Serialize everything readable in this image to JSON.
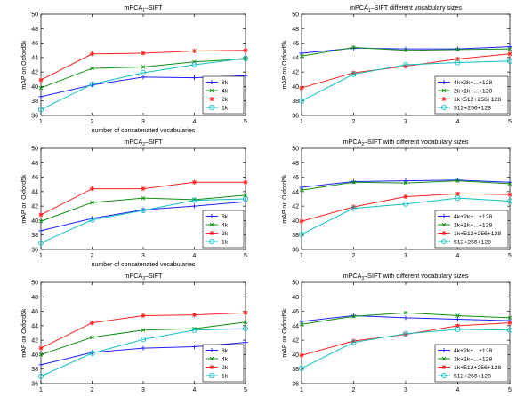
{
  "colors": {
    "blue": "#2020ff",
    "green": "#109010",
    "red": "#ff2020",
    "cyan": "#10c0c0"
  },
  "markers": [
    "plus",
    "x-cross",
    "star",
    "circle"
  ],
  "chart_data": [
    {
      "type": "line",
      "title": "mPCA",
      "title_subscript": "1",
      "title_suffix": "–SIFT",
      "xlabel": "number of concatenated vocabularies",
      "ylabel": "mAP on Oxford5k",
      "x": [
        1,
        2,
        3,
        4,
        5
      ],
      "xlim": [
        1,
        5
      ],
      "ylim": [
        36,
        50
      ],
      "xticks": [
        "1",
        "2",
        "3",
        "4",
        "5"
      ],
      "yticks": [
        "36",
        "38",
        "40",
        "42",
        "44",
        "46",
        "48",
        "50"
      ],
      "legend": "bottom-right",
      "series": [
        {
          "name": "8k",
          "color": "blue",
          "marker": "plus",
          "values": [
            38.6,
            40.2,
            41.3,
            41.2,
            41.5
          ]
        },
        {
          "name": "4k",
          "color": "green",
          "marker": "x-cross",
          "values": [
            39.8,
            42.5,
            42.7,
            43.4,
            43.8
          ]
        },
        {
          "name": "2k",
          "color": "red",
          "marker": "star",
          "values": [
            40.9,
            44.5,
            44.6,
            44.9,
            45.0
          ]
        },
        {
          "name": "1k",
          "color": "cyan",
          "marker": "circle",
          "values": [
            36.8,
            40.3,
            41.9,
            43.0,
            43.9
          ]
        }
      ]
    },
    {
      "type": "line",
      "title": "mPCA",
      "title_subscript": "1",
      "title_suffix": "–SIFT different vocabulary sizes",
      "xlabel": "",
      "ylabel": "mAP on Oxford5k",
      "x": [
        1,
        2,
        3,
        4,
        5
      ],
      "xlim": [
        1,
        5
      ],
      "ylim": [
        36,
        50
      ],
      "xticks": [
        "1",
        "2",
        "3",
        "4",
        "5"
      ],
      "yticks": [
        "36",
        "38",
        "40",
        "42",
        "44",
        "46",
        "48",
        "50"
      ],
      "legend": "bottom-right",
      "series": [
        {
          "name": "4k+2k+...+128",
          "color": "blue",
          "marker": "plus",
          "values": [
            44.6,
            45.3,
            45.2,
            45.2,
            45.5
          ]
        },
        {
          "name": "2k+1k+...+128",
          "color": "green",
          "marker": "x-cross",
          "values": [
            44.2,
            45.4,
            45.0,
            45.1,
            45.2
          ]
        },
        {
          "name": "1k+512+256+128",
          "color": "red",
          "marker": "star",
          "values": [
            39.8,
            41.9,
            42.8,
            43.8,
            44.5
          ]
        },
        {
          "name": "512+256+128",
          "color": "cyan",
          "marker": "circle",
          "values": [
            38.0,
            41.7,
            43.0,
            43.3,
            43.5
          ]
        }
      ]
    },
    {
      "type": "line",
      "title": "mPCA",
      "title_subscript": "2",
      "title_suffix": "–SIFT",
      "xlabel": "number of concatenated vocabularies",
      "ylabel": "mAP on Oxford5k",
      "x": [
        1,
        2,
        3,
        4,
        5
      ],
      "xlim": [
        1,
        5
      ],
      "ylim": [
        36,
        50
      ],
      "xticks": [
        "1",
        "2",
        "3",
        "4",
        "5"
      ],
      "yticks": [
        "36",
        "38",
        "40",
        "42",
        "44",
        "46",
        "48",
        "50"
      ],
      "legend": "bottom-right",
      "series": [
        {
          "name": "8k",
          "color": "blue",
          "marker": "plus",
          "values": [
            38.6,
            40.3,
            41.5,
            42.0,
            42.6
          ]
        },
        {
          "name": "4k",
          "color": "green",
          "marker": "x-cross",
          "values": [
            39.9,
            42.5,
            43.1,
            42.9,
            43.5
          ]
        },
        {
          "name": "2k",
          "color": "red",
          "marker": "star",
          "values": [
            40.8,
            44.4,
            44.4,
            45.3,
            45.3
          ]
        },
        {
          "name": "1k",
          "color": "cyan",
          "marker": "circle",
          "values": [
            36.9,
            40.1,
            41.4,
            42.8,
            43.0
          ]
        }
      ]
    },
    {
      "type": "line",
      "title": "mPCA",
      "title_subscript": "2",
      "title_suffix": "–SIFT with different vocabulary sizes",
      "xlabel": "",
      "ylabel": "mAP on Oxford5k",
      "x": [
        1,
        2,
        3,
        4,
        5
      ],
      "xlim": [
        1,
        5
      ],
      "ylim": [
        36,
        50
      ],
      "xticks": [
        "1",
        "2",
        "3",
        "4",
        "5"
      ],
      "yticks": [
        "36",
        "38",
        "40",
        "42",
        "44",
        "46",
        "48",
        "50"
      ],
      "legend": "bottom-right",
      "series": [
        {
          "name": "4k+2k+...+128",
          "color": "blue",
          "marker": "plus",
          "values": [
            44.6,
            45.4,
            45.5,
            45.6,
            45.3
          ]
        },
        {
          "name": "2k+1k+...+128",
          "color": "green",
          "marker": "x-cross",
          "values": [
            44.2,
            45.3,
            45.2,
            45.5,
            45.1
          ]
        },
        {
          "name": "1k+512+256+128",
          "color": "red",
          "marker": "star",
          "values": [
            39.9,
            41.9,
            43.3,
            43.7,
            43.6
          ]
        },
        {
          "name": "512+256+128",
          "color": "cyan",
          "marker": "circle",
          "values": [
            38.1,
            41.7,
            42.3,
            43.1,
            42.7
          ]
        }
      ]
    },
    {
      "type": "line",
      "title": "mPCA",
      "title_subscript": "3",
      "title_suffix": "–SIFT",
      "xlabel": "number of concatenated vocabularies",
      "ylabel": "mAP on Oxford5k",
      "x": [
        1,
        2,
        3,
        4,
        5
      ],
      "xlim": [
        1,
        5
      ],
      "ylim": [
        36,
        50
      ],
      "xticks": [
        "1",
        "2",
        "3",
        "4",
        "5"
      ],
      "yticks": [
        "36",
        "38",
        "40",
        "42",
        "44",
        "46",
        "48",
        "50"
      ],
      "legend": "bottom-right",
      "series": [
        {
          "name": "8k",
          "color": "blue",
          "marker": "plus",
          "values": [
            38.6,
            40.3,
            40.9,
            41.1,
            41.7
          ]
        },
        {
          "name": "4k",
          "color": "green",
          "marker": "x-cross",
          "values": [
            40.0,
            42.4,
            43.4,
            43.6,
            44.5
          ]
        },
        {
          "name": "2k",
          "color": "red",
          "marker": "star",
          "values": [
            40.9,
            44.4,
            45.4,
            45.5,
            45.8
          ]
        },
        {
          "name": "1k",
          "color": "cyan",
          "marker": "circle",
          "values": [
            37.0,
            40.2,
            42.1,
            43.4,
            43.6
          ]
        }
      ]
    },
    {
      "type": "line",
      "title": "mPCA",
      "title_subscript": "3",
      "title_suffix": "–SIFT with different vocabulary sizes",
      "xlabel": "",
      "ylabel": "mAP on Oxford5k",
      "x": [
        1,
        2,
        3,
        4,
        5
      ],
      "xlim": [
        1,
        5
      ],
      "ylim": [
        36,
        50
      ],
      "xticks": [
        "1",
        "2",
        "3",
        "4",
        "5"
      ],
      "yticks": [
        "36",
        "38",
        "40",
        "42",
        "44",
        "46",
        "48",
        "50"
      ],
      "legend": "bottom-right",
      "series": [
        {
          "name": "4k+2k+...+128",
          "color": "blue",
          "marker": "plus",
          "values": [
            44.6,
            45.4,
            45.1,
            44.9,
            44.7
          ]
        },
        {
          "name": "2k+1k+...+128",
          "color": "green",
          "marker": "x-cross",
          "values": [
            44.2,
            45.3,
            45.8,
            45.4,
            45.1
          ]
        },
        {
          "name": "1k+512+256+128",
          "color": "red",
          "marker": "star",
          "values": [
            39.9,
            41.9,
            42.8,
            44.0,
            44.4
          ]
        },
        {
          "name": "512+256+128",
          "color": "cyan",
          "marker": "circle",
          "values": [
            38.1,
            41.7,
            42.9,
            43.5,
            43.4
          ]
        }
      ]
    }
  ]
}
